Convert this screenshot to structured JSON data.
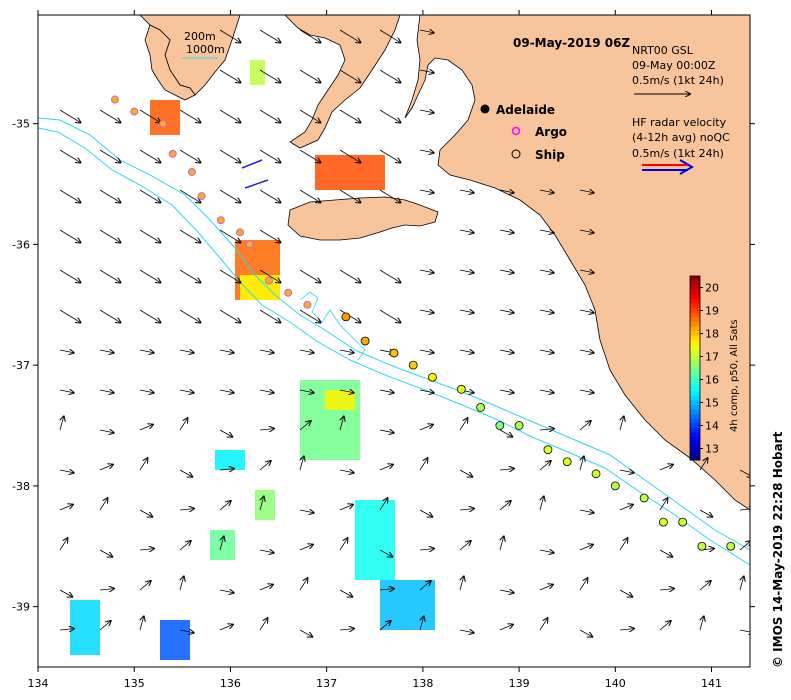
{
  "map": {
    "date_title": "09-May-2019 06Z",
    "credit": "© IMOS 14-May-2019 22:28 Hobart",
    "x_ticks": [
      "134",
      "135",
      "136",
      "137",
      "138",
      "139",
      "140",
      "141"
    ],
    "y_ticks": [
      "-35",
      "-36",
      "-37",
      "-38",
      "-39"
    ],
    "x_tick_values": [
      134,
      135,
      136,
      137,
      138,
      139,
      140,
      141
    ],
    "y_tick_values": [
      -35,
      -36,
      -37,
      -38,
      -39
    ],
    "lon_range": [
      134,
      141.4
    ],
    "lat_range": [
      -39.5,
      -34.1
    ],
    "colors": {
      "land": "#f8c49c",
      "ocean": "#ffffff",
      "isobath": "#30d8ec",
      "radar_red": "#ff0000",
      "radar_blue": "#0000dd",
      "argo": "#ff00ff"
    }
  },
  "isobath_legend": {
    "line1": "200m",
    "line2": "1000m"
  },
  "legend": {
    "gsl_line1": "NRT00 GSL",
    "gsl_line2": "09-May 00:00Z",
    "gsl_line3": "0.5m/s (1kt 24h)",
    "hf_line1": "HF radar velocity",
    "hf_line2": "(4-12h avg) noQC",
    "hf_line3": "0.5m/s (1kt 24h)",
    "adelaide": "Adelaide",
    "argo": "Argo",
    "ship": "Ship"
  },
  "colorbar": {
    "label": "4h comp, p50, All Sats",
    "ticks": [
      "20",
      "19",
      "18",
      "17",
      "16",
      "15",
      "14",
      "13"
    ],
    "min": 12.5,
    "max": 20.5
  },
  "ship_points": [
    {
      "lon": 137.2,
      "lat": -36.6,
      "sst": 18.3
    },
    {
      "lon": 137.4,
      "lat": -36.8,
      "sst": 18.2
    },
    {
      "lon": 137.7,
      "lat": -36.9,
      "sst": 18.0
    },
    {
      "lon": 137.9,
      "lat": -37.0,
      "sst": 17.9
    },
    {
      "lon": 138.1,
      "lat": -37.1,
      "sst": 17.6
    },
    {
      "lon": 138.4,
      "lat": -37.2,
      "sst": 17.3
    },
    {
      "lon": 138.6,
      "lat": -37.35,
      "sst": 16.8
    },
    {
      "lon": 138.8,
      "lat": -37.5,
      "sst": 16.5
    },
    {
      "lon": 139.0,
      "lat": -37.5,
      "sst": 16.9
    },
    {
      "lon": 139.3,
      "lat": -37.7,
      "sst": 17.2
    },
    {
      "lon": 139.5,
      "lat": -37.8,
      "sst": 17.3
    },
    {
      "lon": 139.8,
      "lat": -37.9,
      "sst": 17.1
    },
    {
      "lon": 140.0,
      "lat": -38.0,
      "sst": 16.9
    },
    {
      "lon": 140.3,
      "lat": -38.1,
      "sst": 17.0
    },
    {
      "lon": 140.5,
      "lat": -38.3,
      "sst": 17.2
    },
    {
      "lon": 140.7,
      "lat": -38.3,
      "sst": 17.1
    },
    {
      "lon": 140.9,
      "lat": -38.5,
      "sst": 17.0
    },
    {
      "lon": 141.2,
      "lat": -38.5,
      "sst": 17.0
    }
  ],
  "argo_points": [
    {
      "lon": 134.8,
      "lat": -34.8
    },
    {
      "lon": 135.0,
      "lat": -34.9
    },
    {
      "lon": 135.3,
      "lat": -35.0
    },
    {
      "lon": 135.4,
      "lat": -35.25
    },
    {
      "lon": 135.6,
      "lat": -35.4
    },
    {
      "lon": 135.7,
      "lat": -35.6
    },
    {
      "lon": 135.9,
      "lat": -35.8
    },
    {
      "lon": 136.1,
      "lat": -35.9
    },
    {
      "lon": 136.2,
      "lat": -36.0
    },
    {
      "lon": 136.4,
      "lat": -36.3
    },
    {
      "lon": 136.6,
      "lat": -36.4
    },
    {
      "lon": 136.8,
      "lat": -36.5
    }
  ]
}
